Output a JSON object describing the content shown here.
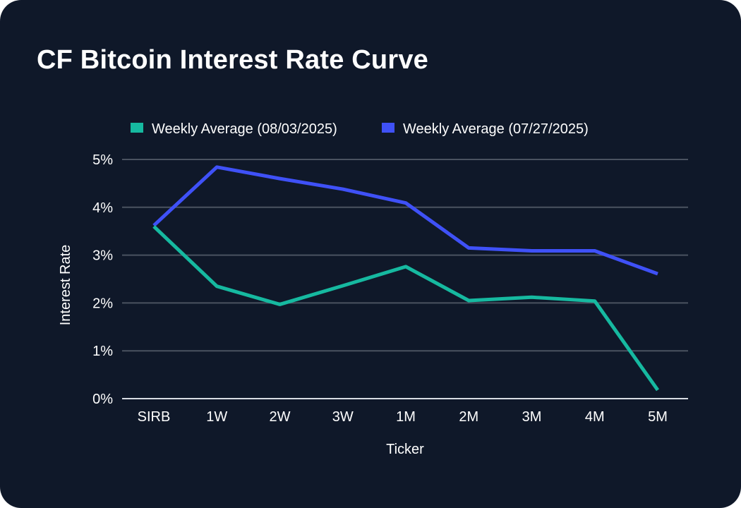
{
  "chart_data": {
    "type": "line",
    "title": "CF Bitcoin Interest Rate Curve",
    "xlabel": "Ticker",
    "ylabel": "Interest Rate",
    "categories": [
      "SIRB",
      "1W",
      "2W",
      "3W",
      "1M",
      "2M",
      "3M",
      "4M",
      "5M"
    ],
    "ylim": [
      0,
      5
    ],
    "yticks": [
      0,
      1,
      2,
      3,
      4,
      5
    ],
    "ytick_labels": [
      "0%",
      "1%",
      "2%",
      "3%",
      "4%",
      "5%"
    ],
    "grid": true,
    "legend_position": "top",
    "series": [
      {
        "name": "Weekly Average (08/03/2025)",
        "color": "#16b9a0",
        "values": [
          3.6,
          2.35,
          1.97,
          2.36,
          2.76,
          2.05,
          2.12,
          2.04,
          0.18
        ]
      },
      {
        "name": "Weekly Average (07/27/2025)",
        "color": "#3f51f7",
        "values": [
          3.62,
          4.84,
          4.6,
          4.38,
          4.09,
          3.15,
          3.09,
          3.09,
          2.61
        ]
      }
    ]
  }
}
